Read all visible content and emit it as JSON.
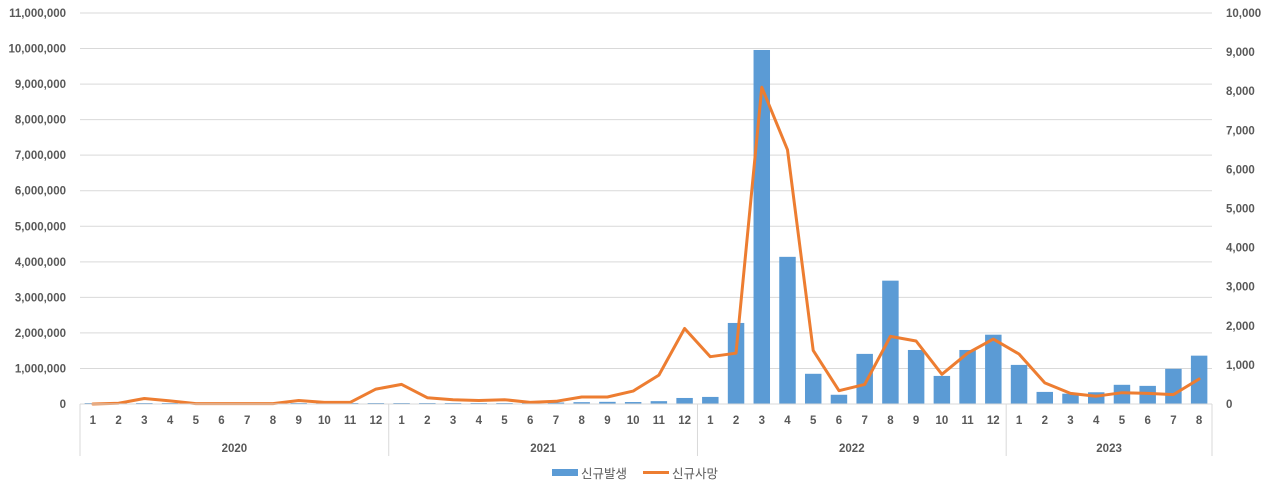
{
  "chart_data": {
    "type": "bar+line",
    "title": "",
    "xlabel": "",
    "ylabel": "",
    "y2label": "",
    "grid": true,
    "legend_position": "bottom",
    "colors": {
      "bar": "#5B9BD5",
      "line": "#ED7D31",
      "grid": "#D9D9D9",
      "text": "#595959"
    },
    "ylim": [
      0,
      11000000
    ],
    "y_ticks": [
      "0",
      "1,000,000",
      "2,000,000",
      "3,000,000",
      "4,000,000",
      "5,000,000",
      "6,000,000",
      "7,000,000",
      "8,000,000",
      "9,000,000",
      "10,000,000",
      "11,000,000"
    ],
    "y2lim": [
      0,
      10000
    ],
    "y2_ticks": [
      "0",
      "1,000",
      "2,000",
      "3,000",
      "4,000",
      "5,000",
      "6,000",
      "7,000",
      "8,000",
      "9,000",
      "10,000"
    ],
    "years": [
      {
        "label": "2020",
        "months": [
          "1",
          "2",
          "3",
          "4",
          "5",
          "6",
          "7",
          "8",
          "9",
          "10",
          "11",
          "12"
        ]
      },
      {
        "label": "2021",
        "months": [
          "1",
          "2",
          "3",
          "4",
          "5",
          "6",
          "7",
          "8",
          "9",
          "10",
          "11",
          "12"
        ]
      },
      {
        "label": "2022",
        "months": [
          "1",
          "2",
          "3",
          "4",
          "5",
          "6",
          "7",
          "8",
          "9",
          "10",
          "11",
          "12"
        ]
      },
      {
        "label": "2023",
        "months": [
          "1",
          "2",
          "3",
          "4",
          "5",
          "6",
          "7",
          "8"
        ]
      }
    ],
    "series": [
      {
        "name": "신규발생",
        "type": "bar",
        "axis": "left",
        "values": [
          10,
          3000,
          6000,
          900,
          700,
          1300,
          1500,
          5600,
          3900,
          2700,
          7800,
          26500,
          17900,
          7400,
          13400,
          19400,
          17500,
          15500,
          41400,
          51900,
          60700,
          55400,
          80200,
          169600,
          199000,
          2280000,
          9960000,
          4140000,
          850000,
          260000,
          1410000,
          3470000,
          1520000,
          790000,
          1520000,
          1950000,
          1100000,
          340000,
          290000,
          330000,
          540000,
          510000,
          990000,
          1360000
        ]
      },
      {
        "name": "신규사망",
        "type": "line",
        "axis": "right",
        "values": [
          0,
          20,
          140,
          80,
          10,
          10,
          10,
          10,
          90,
          40,
          40,
          380,
          500,
          160,
          110,
          90,
          110,
          40,
          70,
          180,
          180,
          330,
          740,
          1930,
          1210,
          1300,
          8100,
          6500,
          1370,
          340,
          500,
          1730,
          1610,
          760,
          1300,
          1660,
          1280,
          540,
          270,
          200,
          290,
          270,
          240,
          640
        ]
      }
    ]
  },
  "legend": {
    "bar_label": "신규발생",
    "line_label": "신규사망"
  }
}
